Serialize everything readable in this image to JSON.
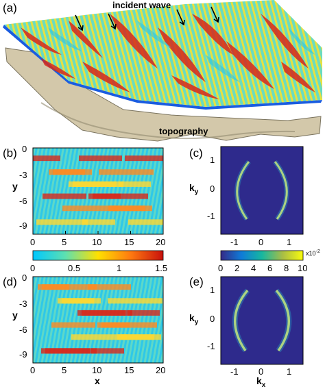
{
  "panels": {
    "a": {
      "label": "(a)",
      "annotations": {
        "incident": "incident wave",
        "topography": "topography"
      }
    },
    "b": {
      "label": "(b)",
      "xlabel": "",
      "ylabel": "y",
      "xticks": [
        "0",
        "5",
        "10",
        "15",
        "20"
      ],
      "yticks": [
        "0",
        "-3",
        "-6",
        "-9"
      ]
    },
    "c": {
      "label": "(c)",
      "xlabel": "",
      "ylabel": "k",
      "ylabel_sub": "y",
      "xticks": [
        "-1",
        "0",
        "1"
      ],
      "yticks": [
        "1",
        "0",
        "-1"
      ]
    },
    "d": {
      "label": "(d)",
      "xlabel": "x",
      "ylabel": "y",
      "xticks": [
        "0",
        "5",
        "10",
        "15",
        "20"
      ],
      "yticks": [
        "0",
        "-3",
        "-6",
        "-9"
      ]
    },
    "e": {
      "label": "(e)",
      "xlabel": "k",
      "xlabel_sub": "x",
      "ylabel": "k",
      "ylabel_sub": "y",
      "xticks": [
        "-1",
        "0",
        "1"
      ],
      "yticks": [
        "1",
        "0",
        "-1"
      ]
    }
  },
  "colorbars": {
    "left": {
      "ticks": [
        "0",
        "0.5",
        "1",
        "1.5"
      ]
    },
    "right": {
      "ticks": [
        "0",
        "2",
        "4",
        "6",
        "8",
        "10"
      ],
      "multiplier": "x10",
      "exponent": "-2"
    }
  },
  "colors": {
    "jet_low": "#00c8ff",
    "jet_mid": "#ffe000",
    "jet_high": "#d01c0c",
    "spectrum_bg": "#2e2a8c",
    "spectrum_ring": "#f2e35c",
    "topo": "#d6ccb0"
  }
}
